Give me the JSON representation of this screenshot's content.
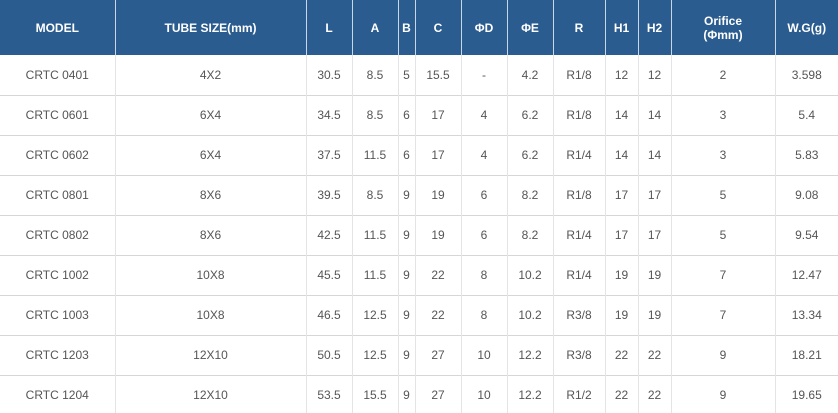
{
  "headers": [
    {
      "key": "model",
      "label": "MODEL"
    },
    {
      "key": "tube",
      "label": "TUBE SIZE(mm)"
    },
    {
      "key": "L",
      "label": "L"
    },
    {
      "key": "A",
      "label": "A"
    },
    {
      "key": "B",
      "label": "B"
    },
    {
      "key": "C",
      "label": "C"
    },
    {
      "key": "D",
      "label": "ΦD"
    },
    {
      "key": "E",
      "label": "ΦE"
    },
    {
      "key": "R",
      "label": "R"
    },
    {
      "key": "H1",
      "label": "H1"
    },
    {
      "key": "H2",
      "label": "H2"
    },
    {
      "key": "orifice",
      "label": "Orifice",
      "sub": "(Φmm)"
    },
    {
      "key": "wg",
      "label": "W.G(g)"
    }
  ],
  "rows": [
    [
      "CRTC 0401",
      "4X2",
      "30.5",
      "8.5",
      "5",
      "15.5",
      "-",
      "4.2",
      "R1/8",
      "12",
      "12",
      "2",
      "3.598"
    ],
    [
      "CRTC 0601",
      "6X4",
      "34.5",
      "8.5",
      "6",
      "17",
      "4",
      "6.2",
      "R1/8",
      "14",
      "14",
      "3",
      "5.4"
    ],
    [
      "CRTC 0602",
      "6X4",
      "37.5",
      "11.5",
      "6",
      "17",
      "4",
      "6.2",
      "R1/4",
      "14",
      "14",
      "3",
      "5.83"
    ],
    [
      "CRTC 0801",
      "8X6",
      "39.5",
      "8.5",
      "9",
      "19",
      "6",
      "8.2",
      "R1/8",
      "17",
      "17",
      "5",
      "9.08"
    ],
    [
      "CRTC 0802",
      "8X6",
      "42.5",
      "11.5",
      "9",
      "19",
      "6",
      "8.2",
      "R1/4",
      "17",
      "17",
      "5",
      "9.54"
    ],
    [
      "CRTC 1002",
      "10X8",
      "45.5",
      "11.5",
      "9",
      "22",
      "8",
      "10.2",
      "R1/4",
      "19",
      "19",
      "7",
      "12.47"
    ],
    [
      "CRTC 1003",
      "10X8",
      "46.5",
      "12.5",
      "9",
      "22",
      "8",
      "10.2",
      "R3/8",
      "19",
      "19",
      "7",
      "13.34"
    ],
    [
      "CRTC 1203",
      "12X10",
      "50.5",
      "12.5",
      "9",
      "27",
      "10",
      "12.2",
      "R3/8",
      "22",
      "22",
      "9",
      "18.21"
    ],
    [
      "CRTC 1204",
      "12X10",
      "53.5",
      "15.5",
      "9",
      "27",
      "10",
      "12.2",
      "R1/2",
      "22",
      "22",
      "9",
      "19.65"
    ]
  ]
}
